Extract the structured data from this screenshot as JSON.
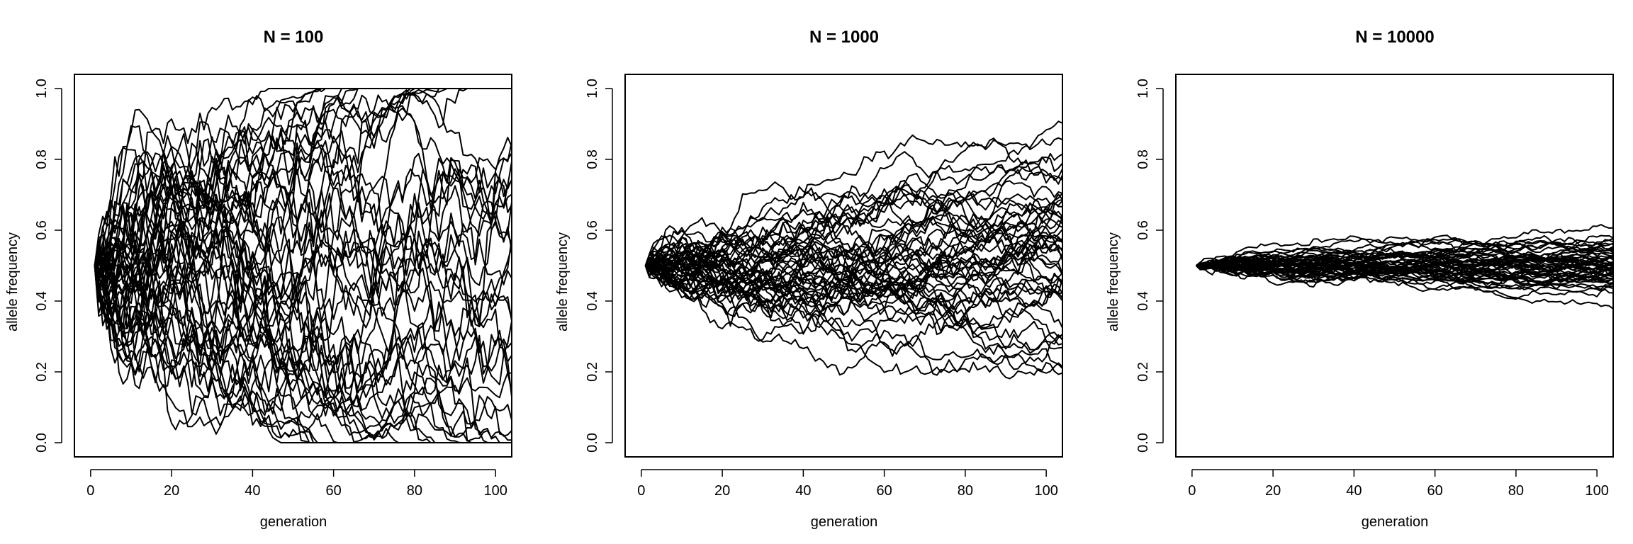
{
  "chart_data": [
    {
      "type": "line",
      "title": "N = 100",
      "xlabel": "generation",
      "ylabel": "allele frequency",
      "xlim": [
        -4,
        104
      ],
      "ylim": [
        -0.04,
        1.04
      ],
      "xticks": [
        "0",
        "20",
        "40",
        "60",
        "80",
        "100"
      ],
      "yticks": [
        "0.0",
        "0.2",
        "0.4",
        "0.6",
        "0.8",
        "1.0"
      ],
      "grid": false,
      "legend": "none",
      "generations": [
        1,
        100
      ],
      "start_frequency": 0.5,
      "n_replicates": 50,
      "series_color": "#000000"
    },
    {
      "type": "line",
      "title": "N = 1000",
      "xlabel": "generation",
      "ylabel": "allele frequency",
      "xlim": [
        -4,
        104
      ],
      "ylim": [
        -0.04,
        1.04
      ],
      "xticks": [
        "0",
        "20",
        "40",
        "60",
        "80",
        "100"
      ],
      "yticks": [
        "0.0",
        "0.2",
        "0.4",
        "0.6",
        "0.8",
        "1.0"
      ],
      "grid": false,
      "legend": "none",
      "generations": [
        1,
        100
      ],
      "start_frequency": 0.5,
      "n_replicates": 50,
      "series_color": "#000000"
    },
    {
      "type": "line",
      "title": "N = 10000",
      "xlabel": "generation",
      "ylabel": "allele frequency",
      "xlim": [
        -4,
        104
      ],
      "ylim": [
        -0.04,
        1.04
      ],
      "xticks": [
        "0",
        "20",
        "40",
        "60",
        "80",
        "100"
      ],
      "yticks": [
        "0.0",
        "0.2",
        "0.4",
        "0.6",
        "0.8",
        "1.0"
      ],
      "grid": false,
      "legend": "none",
      "generations": [
        1,
        100
      ],
      "start_frequency": 0.5,
      "n_replicates": 50,
      "series_color": "#000000"
    }
  ]
}
